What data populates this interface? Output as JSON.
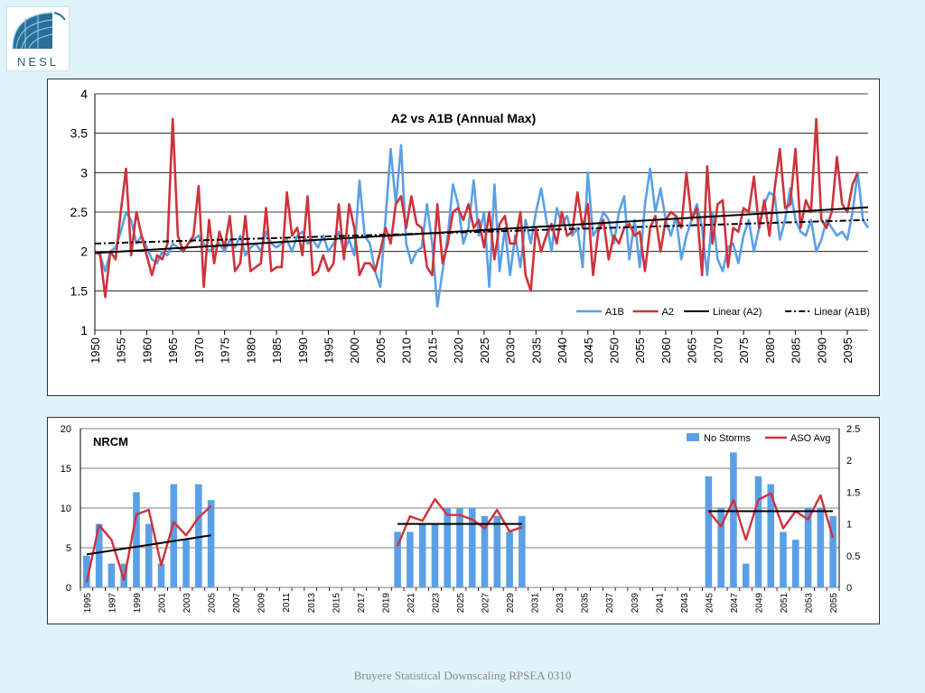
{
  "logo": {
    "text": "NESL"
  },
  "footer": "Bruyere Statistical Downscaling RPSEA 0310",
  "chart_data": [
    {
      "type": "line",
      "title": "A2 vs A1B (Annual Max)",
      "xlabel": "",
      "ylabel": "",
      "xlim": [
        1950,
        2099
      ],
      "ylim": [
        1,
        4
      ],
      "yticks": [
        1,
        1.5,
        2,
        2.5,
        3,
        3.5,
        4
      ],
      "xticks": [
        1950,
        1955,
        1960,
        1965,
        1970,
        1975,
        1980,
        1985,
        1990,
        1995,
        2000,
        2005,
        2010,
        2015,
        2020,
        2025,
        2030,
        2035,
        2040,
        2045,
        2050,
        2055,
        2060,
        2065,
        2070,
        2075,
        2080,
        2085,
        2090,
        2095
      ],
      "grid": "horizontal",
      "legend": "bottom-right",
      "x_start": 1950,
      "series": [
        {
          "name": "A1B",
          "color": "#5aa0e6",
          "style": "solid",
          "values": [
            2.0,
            1.95,
            1.75,
            2.0,
            2.05,
            2.25,
            2.5,
            2.4,
            2.1,
            2.2,
            2.05,
            1.9,
            1.85,
            2.0,
            1.95,
            2.1,
            2.05,
            2.0,
            2.1,
            2.15,
            2.2,
            2.1,
            2.0,
            2.05,
            2.1,
            2.0,
            2.15,
            2.05,
            2.2,
            1.95,
            2.05,
            2.1,
            2.0,
            2.25,
            2.1,
            2.05,
            2.1,
            2.15,
            2.0,
            2.2,
            2.25,
            2.1,
            2.15,
            2.05,
            2.2,
            2.0,
            2.1,
            2.25,
            2.0,
            2.15,
            1.95,
            2.9,
            2.2,
            2.1,
            1.75,
            1.55,
            2.4,
            3.3,
            2.6,
            3.35,
            2.1,
            1.85,
            2.0,
            2.05,
            2.6,
            2.1,
            1.3,
            1.75,
            2.2,
            2.85,
            2.6,
            2.1,
            2.3,
            2.9,
            2.2,
            2.5,
            1.55,
            2.85,
            1.75,
            2.3,
            1.7,
            2.2,
            1.8,
            2.4,
            2.1,
            2.5,
            2.8,
            2.4,
            2.0,
            2.55,
            2.35,
            2.45,
            2.2,
            2.3,
            1.8,
            3.0,
            2.2,
            2.3,
            2.5,
            2.4,
            2.1,
            2.5,
            2.7,
            1.9,
            2.4,
            1.8,
            2.6,
            3.05,
            2.5,
            2.8,
            2.4,
            2.2,
            2.45,
            1.9,
            2.2,
            2.4,
            2.6,
            2.3,
            1.7,
            2.5,
            1.9,
            1.75,
            2.05,
            2.1,
            1.85,
            2.2,
            2.4,
            2.0,
            2.3,
            2.6,
            2.75,
            2.7,
            2.15,
            2.4,
            2.8,
            2.4,
            2.25,
            2.2,
            2.4,
            2.0,
            2.15,
            2.4,
            2.3,
            2.2,
            2.25,
            2.15,
            2.5,
            3.0,
            2.4,
            2.3
          ]
        },
        {
          "name": "A2",
          "color": "#d0323a",
          "style": "solid",
          "values": [
            2.0,
            1.98,
            1.42,
            2.0,
            1.9,
            2.5,
            3.05,
            1.95,
            2.5,
            2.2,
            1.95,
            1.7,
            1.95,
            1.9,
            2.1,
            3.68,
            2.2,
            2.0,
            2.1,
            2.2,
            2.83,
            1.55,
            2.4,
            1.85,
            2.25,
            2.05,
            2.45,
            1.75,
            1.85,
            2.45,
            1.75,
            1.8,
            1.85,
            2.55,
            1.75,
            1.8,
            1.8,
            2.75,
            2.2,
            2.3,
            1.95,
            2.7,
            1.7,
            1.75,
            1.95,
            1.75,
            1.85,
            2.6,
            1.9,
            2.6,
            2.3,
            1.7,
            1.85,
            1.85,
            1.75,
            2.0,
            2.3,
            2.1,
            2.6,
            2.7,
            2.3,
            2.7,
            2.35,
            2.3,
            1.8,
            1.7,
            2.6,
            1.85,
            2.1,
            2.5,
            2.55,
            2.4,
            2.6,
            2.3,
            2.4,
            2.05,
            2.5,
            1.9,
            2.35,
            2.45,
            2.1,
            2.1,
            2.5,
            1.7,
            1.5,
            2.3,
            2.0,
            2.2,
            2.35,
            2.1,
            2.5,
            2.2,
            2.25,
            2.75,
            2.3,
            2.6,
            1.7,
            2.25,
            2.4,
            1.9,
            2.2,
            2.1,
            2.3,
            2.35,
            2.2,
            2.25,
            1.75,
            2.3,
            2.45,
            2.0,
            2.4,
            2.5,
            2.45,
            2.3,
            3.0,
            2.4,
            2.55,
            1.7,
            3.08,
            2.1,
            2.6,
            2.65,
            1.8,
            2.3,
            2.25,
            2.55,
            2.5,
            2.95,
            2.3,
            2.65,
            2.2,
            2.8,
            3.3,
            2.55,
            2.6,
            3.3,
            2.3,
            2.65,
            2.5,
            3.68,
            2.4,
            2.3,
            2.5,
            3.2,
            2.6,
            2.5,
            2.85,
            3.0
          ]
        },
        {
          "name": "Linear (A2)",
          "color": "#000000",
          "style": "solid",
          "trend": [
            1.98,
            2.56
          ]
        },
        {
          "name": "Linear (A1B)",
          "color": "#000000",
          "style": "dashdot",
          "trend": [
            2.1,
            2.4
          ]
        }
      ]
    },
    {
      "type": "bar+line",
      "title": "NRCM",
      "xlabel": "",
      "ylabel": "",
      "ylim_left": [
        0,
        20
      ],
      "ylim_right": [
        0,
        2.5
      ],
      "yticks_left": [
        0,
        5,
        10,
        15,
        20
      ],
      "yticks_right": [
        0,
        0.5,
        1,
        1.5,
        2,
        2.5
      ],
      "grid": "horizontal",
      "legend": "top-right",
      "x_start": 1995,
      "x_end": 2055,
      "xticks": [
        1995,
        1997,
        1999,
        2001,
        2003,
        2005,
        2007,
        2009,
        2011,
        2013,
        2015,
        2017,
        2019,
        2021,
        2023,
        2025,
        2027,
        2029,
        2031,
        2033,
        2035,
        2037,
        2039,
        2041,
        2043,
        2045,
        2047,
        2049,
        2051,
        2053,
        2055
      ],
      "segments": [
        {
          "years": [
            1995,
            1996,
            1997,
            1998,
            1999,
            2000,
            2001,
            2002,
            2003,
            2004,
            2005
          ],
          "storms": [
            4,
            8,
            3,
            3,
            12,
            8,
            3,
            13,
            6,
            13,
            11
          ],
          "aso_avg": [
            0.08,
            0.98,
            0.75,
            0.12,
            1.15,
            1.22,
            0.35,
            1.03,
            0.82,
            1.1,
            1.28
          ],
          "trend": [
            0.52,
            0.82
          ]
        },
        {
          "years": [
            2020,
            2021,
            2022,
            2023,
            2024,
            2025,
            2026,
            2027,
            2028,
            2029,
            2030
          ],
          "storms": [
            7,
            7,
            8,
            8,
            10,
            10,
            10,
            9,
            9,
            7,
            9
          ],
          "aso_avg": [
            0.65,
            1.12,
            1.05,
            1.39,
            1.14,
            1.14,
            1.07,
            0.93,
            1.22,
            0.88,
            0.95
          ],
          "trend": [
            1.0,
            1.0
          ]
        },
        {
          "years": [
            2045,
            2046,
            2047,
            2048,
            2049,
            2050,
            2051,
            2052,
            2053,
            2054,
            2055
          ],
          "storms": [
            14,
            10,
            17,
            3,
            14,
            13,
            7,
            6,
            10,
            10,
            9
          ],
          "aso_avg": [
            1.2,
            0.96,
            1.38,
            0.75,
            1.38,
            1.48,
            0.93,
            1.2,
            1.07,
            1.45,
            0.78
          ],
          "trend": [
            1.2,
            1.2
          ]
        }
      ],
      "series": [
        {
          "name": "No Storms",
          "color": "#5aa0e6",
          "axis": "left"
        },
        {
          "name": "ASO Avg",
          "color": "#d0323a",
          "axis": "right"
        }
      ]
    }
  ]
}
